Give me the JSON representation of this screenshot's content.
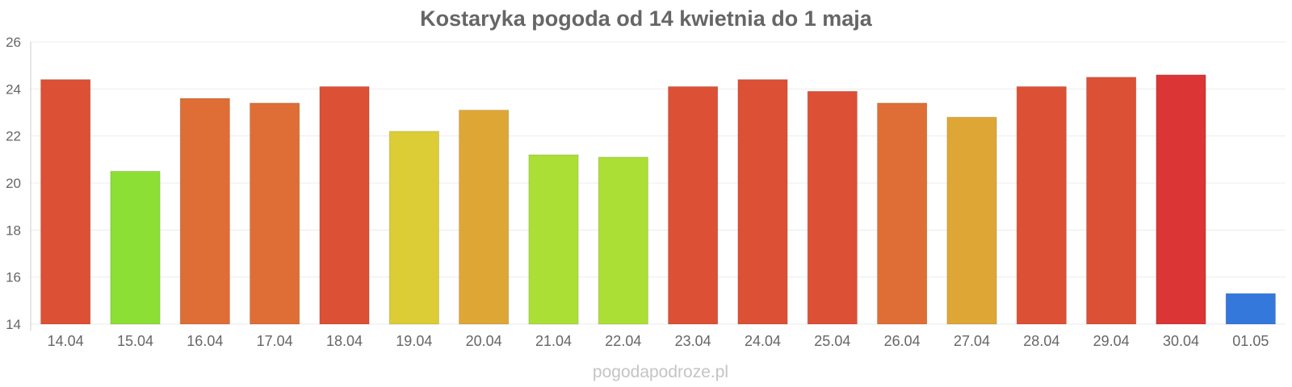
{
  "chart_data": {
    "type": "bar",
    "title": "Kostaryka pogoda od 14 kwietnia do 1 maja",
    "xlabel": "",
    "ylabel": "",
    "ylim": [
      14,
      26
    ],
    "yticks": [
      14,
      16,
      18,
      20,
      22,
      24,
      26
    ],
    "grid": true,
    "legend": "none",
    "categories": [
      "14.04",
      "15.04",
      "16.04",
      "17.04",
      "18.04",
      "19.04",
      "20.04",
      "21.04",
      "22.04",
      "23.04",
      "24.04",
      "25.04",
      "26.04",
      "27.04",
      "28.04",
      "29.04",
      "30.04",
      "01.05"
    ],
    "values": [
      24.4,
      20.5,
      23.6,
      23.4,
      24.1,
      22.2,
      23.1,
      21.2,
      21.1,
      24.1,
      24.4,
      23.9,
      23.4,
      22.8,
      24.1,
      24.5,
      24.6,
      15.3
    ],
    "colors": [
      "#dc5035",
      "#8cdf35",
      "#de6e35",
      "#de6e35",
      "#dc5035",
      "#dccc35",
      "#dea735",
      "#abdf35",
      "#abdf35",
      "#dc5035",
      "#dc5035",
      "#dc5035",
      "#de6e35",
      "#dea735",
      "#dc5035",
      "#dc5035",
      "#db3535",
      "#3578db"
    ],
    "watermark": "pogodapodroze.pl"
  }
}
